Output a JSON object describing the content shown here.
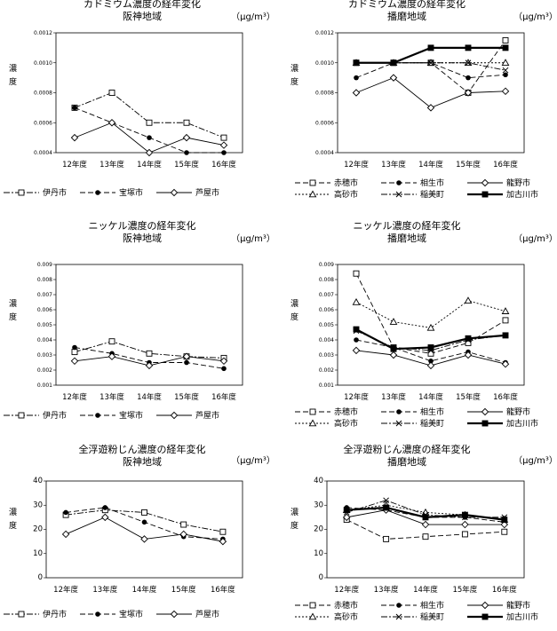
{
  "chart_data": [
    {
      "type": "line",
      "title": "カドミウム濃度の経年変化",
      "subtitle": "阪神地域",
      "unit": "（μg/m³）",
      "ylabel_chars": [
        "濃",
        "度"
      ],
      "categories": [
        "12年度",
        "13年度",
        "14年度",
        "15年度",
        "16年度"
      ],
      "ylim": [
        0.0004,
        0.0012
      ],
      "yticks": [
        0.0004,
        0.0006,
        0.0008,
        0.001,
        0.0012
      ],
      "ytick_labels": [
        "0.0004",
        "0.0006",
        "0.0008",
        "0.0010",
        "0.0012"
      ],
      "series": [
        {
          "name": "伊丹市",
          "values": [
            0.0007,
            0.0008,
            0.0006,
            0.0006,
            0.0005
          ],
          "marker": "square-open",
          "dash": "dashdot"
        },
        {
          "name": "宝塚市",
          "values": [
            0.0007,
            0.0006,
            0.0005,
            0.0004,
            0.0004
          ],
          "marker": "circle",
          "dash": "dash"
        },
        {
          "name": "芦屋市",
          "values": [
            0.0005,
            0.0006,
            0.0004,
            0.0005,
            0.00045
          ],
          "marker": "diamond-open",
          "dash": "solid"
        }
      ]
    },
    {
      "type": "line",
      "title": "カドミウム濃度の経年変化",
      "subtitle": "播磨地域",
      "unit": "（μg/m³）",
      "ylabel_chars": [
        "濃",
        "度"
      ],
      "categories": [
        "12年度",
        "13年度",
        "14年度",
        "15年度",
        "16年度"
      ],
      "ylim": [
        0.0004,
        0.0012
      ],
      "yticks": [
        0.0004,
        0.0006,
        0.0008,
        0.001,
        0.0012
      ],
      "ytick_labels": [
        "0.0004",
        "0.0006",
        "0.0008",
        "0.0010",
        "0.0012"
      ],
      "series": [
        {
          "name": "赤穂市",
          "values": [
            0.001,
            0.001,
            0.001,
            0.0008,
            0.00115
          ],
          "marker": "square-open",
          "dash": "dash"
        },
        {
          "name": "相生市",
          "values": [
            0.0009,
            0.001,
            0.001,
            0.0009,
            0.00092
          ],
          "marker": "circle",
          "dash": "dash"
        },
        {
          "name": "龍野市",
          "values": [
            0.0008,
            0.0009,
            0.0007,
            0.0008,
            0.00081
          ],
          "marker": "diamond-open",
          "dash": "solid"
        },
        {
          "name": "高砂市",
          "values": [
            0.001,
            0.001,
            0.001,
            0.001,
            0.001
          ],
          "marker": "triangle-open",
          "dash": "dot"
        },
        {
          "name": "稲美町",
          "values": [
            0.001,
            0.001,
            0.001,
            0.001,
            0.00095
          ],
          "marker": "x",
          "dash": "dashdot"
        },
        {
          "name": "加古川市",
          "values": [
            0.001,
            0.001,
            0.0011,
            0.0011,
            0.0011
          ],
          "marker": "square",
          "dash": "bold"
        }
      ]
    },
    {
      "type": "line",
      "title": "ニッケル濃度の経年変化",
      "subtitle": "阪神地域",
      "unit": "（μg/m³）",
      "ylabel_chars": [
        "濃",
        "度"
      ],
      "categories": [
        "12年度",
        "13年度",
        "14年度",
        "15年度",
        "16年度"
      ],
      "ylim": [
        0.001,
        0.009
      ],
      "yticks": [
        0.001,
        0.002,
        0.003,
        0.004,
        0.005,
        0.006,
        0.007,
        0.008,
        0.009
      ],
      "ytick_labels": [
        "0.001",
        "0.002",
        "0.003",
        "0.004",
        "0.005",
        "0.006",
        "0.007",
        "0.008",
        "0.009"
      ],
      "series": [
        {
          "name": "伊丹市",
          "values": [
            0.0032,
            0.0039,
            0.0031,
            0.0029,
            0.0028
          ],
          "marker": "square-open",
          "dash": "dashdot"
        },
        {
          "name": "宝塚市",
          "values": [
            0.0035,
            0.0031,
            0.0025,
            0.0025,
            0.0021
          ],
          "marker": "circle",
          "dash": "dash"
        },
        {
          "name": "芦屋市",
          "values": [
            0.0026,
            0.0029,
            0.0023,
            0.0029,
            0.0026
          ],
          "marker": "diamond-open",
          "dash": "solid"
        }
      ]
    },
    {
      "type": "line",
      "title": "ニッケル濃度の経年変化",
      "subtitle": "播磨地域",
      "unit": "（μg/m³）",
      "ylabel_chars": [
        "濃",
        "度"
      ],
      "categories": [
        "12年度",
        "13年度",
        "14年度",
        "15年度",
        "16年度"
      ],
      "ylim": [
        0.001,
        0.009
      ],
      "yticks": [
        0.001,
        0.002,
        0.003,
        0.004,
        0.005,
        0.006,
        0.007,
        0.008,
        0.009
      ],
      "ytick_labels": [
        "0.001",
        "0.002",
        "0.003",
        "0.004",
        "0.005",
        "0.006",
        "0.007",
        "0.008",
        "0.009"
      ],
      "series": [
        {
          "name": "赤穂市",
          "values": [
            0.0084,
            0.0035,
            0.0031,
            0.0038,
            0.0053
          ],
          "marker": "square-open",
          "dash": "dash"
        },
        {
          "name": "相生市",
          "values": [
            0.004,
            0.0035,
            0.0026,
            0.0032,
            0.0025
          ],
          "marker": "circle",
          "dash": "dash"
        },
        {
          "name": "龍野市",
          "values": [
            0.0033,
            0.003,
            0.0023,
            0.003,
            0.0024
          ],
          "marker": "diamond-open",
          "dash": "solid"
        },
        {
          "name": "高砂市",
          "values": [
            0.0065,
            0.0052,
            0.0048,
            0.0066,
            0.0059
          ],
          "marker": "triangle-open",
          "dash": "dot"
        },
        {
          "name": "稲美町",
          "values": [
            0.0046,
            0.0035,
            0.0033,
            0.004,
            0.0043
          ],
          "marker": "x",
          "dash": "dashdot"
        },
        {
          "name": "加古川市",
          "values": [
            0.0047,
            0.0034,
            0.0035,
            0.0041,
            0.0043
          ],
          "marker": "square",
          "dash": "bold"
        }
      ]
    },
    {
      "type": "line",
      "title": "全浮遊粉じん濃度の経年変化",
      "subtitle": "阪神地域",
      "unit": "（μg/m³）",
      "ylabel_chars": [
        "濃",
        "度"
      ],
      "categories": [
        "12年度",
        "13年度",
        "14年度",
        "15年度",
        "16年度"
      ],
      "ylim": [
        0,
        40
      ],
      "yticks": [
        0,
        10,
        20,
        30,
        40
      ],
      "ytick_labels": [
        "0",
        "10",
        "20",
        "30",
        "40"
      ],
      "series": [
        {
          "name": "伊丹市",
          "values": [
            26,
            28,
            27,
            22,
            19
          ],
          "marker": "square-open",
          "dash": "dashdot"
        },
        {
          "name": "宝塚市",
          "values": [
            27,
            29,
            23,
            17,
            16
          ],
          "marker": "circle",
          "dash": "dash"
        },
        {
          "name": "芦屋市",
          "values": [
            18,
            25,
            16,
            18,
            15
          ],
          "marker": "diamond-open",
          "dash": "solid"
        }
      ]
    },
    {
      "type": "line",
      "title": "全浮遊粉じん濃度の経年変化",
      "subtitle": "播磨地域",
      "unit": "（μg/m³）",
      "ylabel_chars": [
        "濃",
        "度"
      ],
      "categories": [
        "12年度",
        "13年度",
        "14年度",
        "15年度",
        "16年度"
      ],
      "ylim": [
        0,
        40
      ],
      "yticks": [
        0,
        10,
        20,
        30,
        40
      ],
      "ytick_labels": [
        "0",
        "10",
        "20",
        "30",
        "40"
      ],
      "series": [
        {
          "name": "赤穂市",
          "values": [
            24,
            16,
            17,
            18,
            19
          ],
          "marker": "square-open",
          "dash": "dash"
        },
        {
          "name": "相生市",
          "values": [
            29,
            28,
            25,
            25,
            23
          ],
          "marker": "circle",
          "dash": "dash"
        },
        {
          "name": "龍野市",
          "values": [
            25,
            28,
            22,
            22,
            22
          ],
          "marker": "diamond-open",
          "dash": "solid"
        },
        {
          "name": "高砂市",
          "values": [
            28,
            30,
            27,
            26,
            24
          ],
          "marker": "triangle-open",
          "dash": "dot"
        },
        {
          "name": "稲美町",
          "values": [
            27,
            32,
            26,
            25,
            25
          ],
          "marker": "x",
          "dash": "dashdot"
        },
        {
          "name": "加古川市",
          "values": [
            28,
            29,
            25,
            26,
            24
          ],
          "marker": "square",
          "dash": "bold"
        }
      ]
    }
  ]
}
